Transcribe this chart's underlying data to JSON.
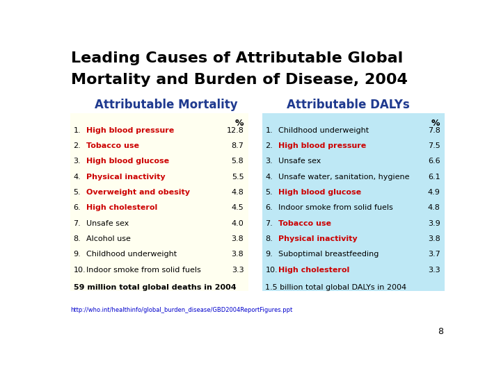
{
  "title_line1": "Leading Causes of Attributable Global",
  "title_line2": "Mortality and Burden of Disease, 2004",
  "left_header": "Attributable Mortality",
  "right_header": "Attributable DALYs",
  "left_bg": "#FFFFF0",
  "right_bg": "#BEE8F5",
  "left_footer": "59 million total global deaths in 2004",
  "right_footer": "1.5 billion total global DALYs in 2004",
  "url": "http://who.int/healthinfo/global_burden_disease/GBD2004ReportFigures.ppt",
  "left_items": [
    {
      "rank": "1.",
      "cause": "High blood pressure",
      "pct": "12.8",
      "red": true
    },
    {
      "rank": "2.",
      "cause": "Tobacco use",
      "pct": "8.7",
      "red": true
    },
    {
      "rank": "3.",
      "cause": "High blood glucose",
      "pct": "5.8",
      "red": true
    },
    {
      "rank": "4.",
      "cause": "Physical inactivity",
      "pct": "5.5",
      "red": true
    },
    {
      "rank": "5.",
      "cause": "Overweight and obesity",
      "pct": "4.8",
      "red": true
    },
    {
      "rank": "6.",
      "cause": "High cholesterol",
      "pct": "4.5",
      "red": true
    },
    {
      "rank": "7.",
      "cause": "Unsafe sex",
      "pct": "4.0",
      "red": false
    },
    {
      "rank": "8.",
      "cause": "Alcohol use",
      "pct": "3.8",
      "red": false
    },
    {
      "rank": "9.",
      "cause": "Childhood underweight",
      "pct": "3.8",
      "red": false
    },
    {
      "rank": "10.",
      "cause": "Indoor smoke from solid fuels",
      "pct": "3.3",
      "red": false
    }
  ],
  "right_items": [
    {
      "rank": "1.",
      "cause": "Childhood underweight",
      "pct": "7.8",
      "red": false
    },
    {
      "rank": "2.",
      "cause": "High blood pressure",
      "pct": "7.5",
      "red": true
    },
    {
      "rank": "3.",
      "cause": "Unsafe sex",
      "pct": "6.6",
      "red": false
    },
    {
      "rank": "4.",
      "cause": "Unsafe water, sanitation, hygiene",
      "pct": "6.1",
      "red": false
    },
    {
      "rank": "5.",
      "cause": "High blood glucose",
      "pct": "4.9",
      "red": true
    },
    {
      "rank": "6.",
      "cause": "Indoor smoke from solid fuels",
      "pct": "4.8",
      "red": false
    },
    {
      "rank": "7.",
      "cause": "Tobacco use",
      "pct": "3.9",
      "red": true
    },
    {
      "rank": "8.",
      "cause": "Physical inactivity",
      "pct": "3.8",
      "red": true
    },
    {
      "rank": "9.",
      "cause": "Suboptimal breastfeeding",
      "pct": "3.7",
      "red": false
    },
    {
      "rank": "10.",
      "cause": "High cholesterol",
      "pct": "3.3",
      "red": true
    }
  ],
  "title_color": "#000000",
  "header_color": "#1F3A8F",
  "red_color": "#CC0000",
  "black_color": "#000000",
  "page_num": "8",
  "col_header_pct": "%",
  "title_fs": 16,
  "header_fs": 12,
  "row_fs": 8,
  "footer_fs": 8,
  "url_fs": 6
}
